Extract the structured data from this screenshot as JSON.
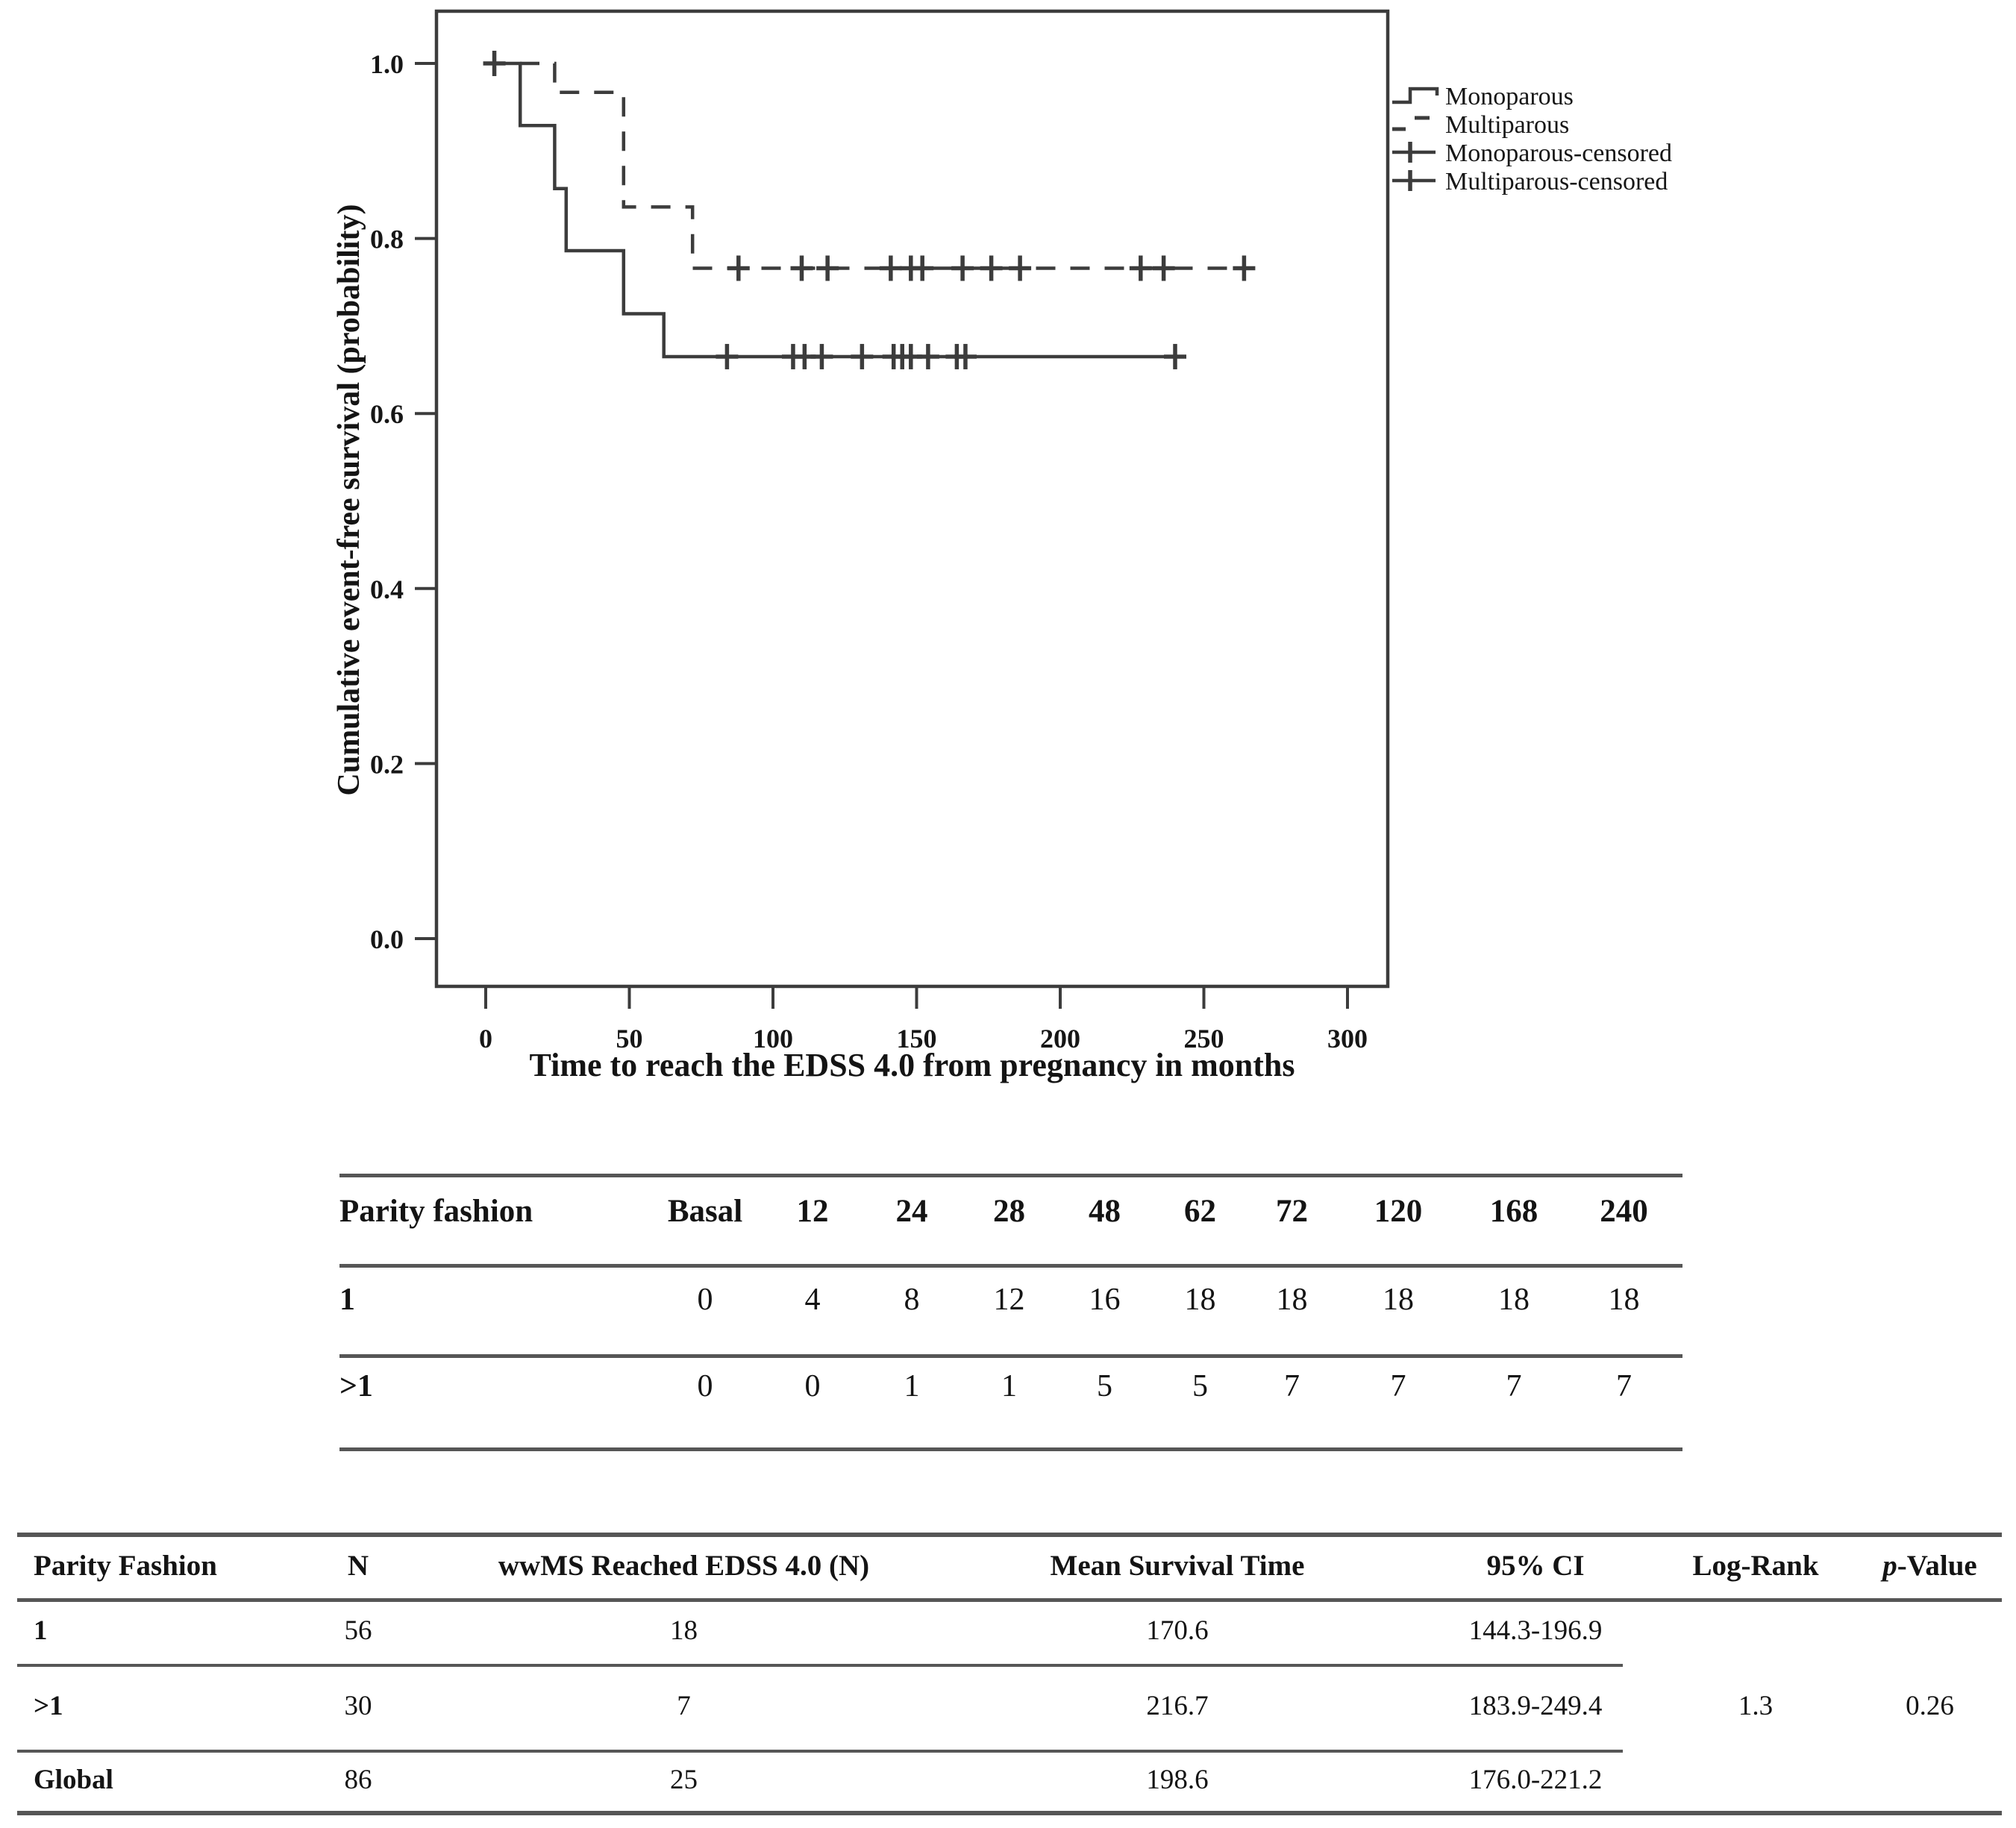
{
  "chart_data": {
    "type": "line",
    "subtype": "kaplan-meier-step-survival",
    "title": "",
    "xlabel": "Time to reach the EDSS 4.0 from pregnancy in months",
    "ylabel": "Cumulative event-free survival (probability)",
    "xticks": [
      0,
      50,
      100,
      150,
      200,
      250,
      300
    ],
    "yticks": [
      "0.0",
      "0.2",
      "0.4",
      "0.6",
      "0.8",
      "1.0"
    ],
    "xlim": [
      0,
      300
    ],
    "ylim": [
      0.0,
      1.0
    ],
    "grid": false,
    "legend_position": "right-top",
    "line_color": "#3c3c3c",
    "legend": [
      {
        "label": "Monoparous",
        "sample": "solid-step"
      },
      {
        "label": "Multiparous",
        "sample": "dashed-step"
      },
      {
        "label": "Monoparous-censored",
        "sample": "cross-line"
      },
      {
        "label": "Multiparous-censored",
        "sample": "cross-line"
      }
    ],
    "series": [
      {
        "name": "Monoparous",
        "line": "solid",
        "points": [
          [
            0,
            1.0
          ],
          [
            12,
            1.0
          ],
          [
            12,
            0.929
          ],
          [
            24,
            0.929
          ],
          [
            24,
            0.857
          ],
          [
            28,
            0.857
          ],
          [
            28,
            0.786
          ],
          [
            48,
            0.786
          ],
          [
            48,
            0.714
          ],
          [
            62,
            0.714
          ],
          [
            62,
            0.665
          ],
          [
            240,
            0.665
          ]
        ],
        "censored": [
          [
            3,
            1.0
          ],
          [
            84,
            0.665
          ],
          [
            107,
            0.665
          ],
          [
            111,
            0.665
          ],
          [
            117,
            0.665
          ],
          [
            131,
            0.665
          ],
          [
            142,
            0.665
          ],
          [
            145,
            0.665
          ],
          [
            148,
            0.665
          ],
          [
            154,
            0.665
          ],
          [
            164,
            0.665
          ],
          [
            167,
            0.665
          ],
          [
            240,
            0.665
          ]
        ]
      },
      {
        "name": "Multiparous",
        "line": "dashed",
        "points": [
          [
            0,
            1.0
          ],
          [
            24,
            1.0
          ],
          [
            24,
            0.967
          ],
          [
            48,
            0.967
          ],
          [
            48,
            0.836
          ],
          [
            72,
            0.836
          ],
          [
            72,
            0.766
          ],
          [
            264,
            0.766
          ]
        ],
        "censored": [
          [
            88,
            0.766
          ],
          [
            110,
            0.766
          ],
          [
            119,
            0.766
          ],
          [
            141,
            0.766
          ],
          [
            148,
            0.766
          ],
          [
            152,
            0.766
          ],
          [
            166,
            0.766
          ],
          [
            176,
            0.766
          ],
          [
            186,
            0.766
          ],
          [
            228,
            0.766
          ],
          [
            236,
            0.766
          ],
          [
            264,
            0.766
          ]
        ]
      }
    ]
  },
  "risk_table": {
    "header": [
      "Parity fashion",
      "Basal",
      "12",
      "24",
      "28",
      "48",
      "62",
      "72",
      "120",
      "168",
      "240"
    ],
    "rows": [
      {
        "label": "1",
        "values": [
          "0",
          "4",
          "8",
          "12",
          "16",
          "18",
          "18",
          "18",
          "18",
          "18"
        ]
      },
      {
        "label": ">1",
        "values": [
          "0",
          "0",
          "1",
          "1",
          "5",
          "5",
          "7",
          "7",
          "7",
          "7"
        ]
      }
    ]
  },
  "stats_table": {
    "columns": [
      {
        "label": "Parity Fashion"
      },
      {
        "label": "N"
      },
      {
        "label": "wwMS Reached EDSS 4.0 (N)"
      },
      {
        "label": "Mean Survival Time"
      },
      {
        "label": "95% CI"
      },
      {
        "label": "Log-Rank"
      },
      {
        "label": "p-Value",
        "italic_prefix": true
      }
    ],
    "rows": [
      [
        "1",
        "56",
        "18",
        "170.6",
        "144.3-196.9",
        "",
        ""
      ],
      [
        ">1",
        "30",
        "7",
        "216.7",
        "183.9-249.4",
        "1.3",
        "0.26"
      ],
      [
        "Global",
        "86",
        "25",
        "198.6",
        "176.0-221.2",
        "",
        ""
      ]
    ]
  }
}
